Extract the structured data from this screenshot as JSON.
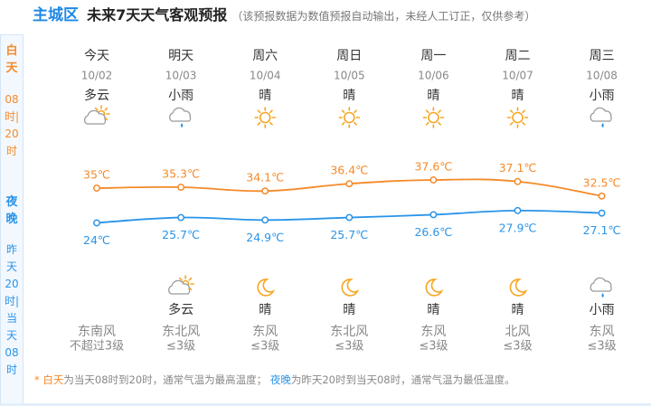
{
  "header": {
    "title": "主城区",
    "subtitle": "未来7天天气客观预报",
    "note": "（该预报数据为数值预报自动输出，未经人工订正，仅供参考）"
  },
  "sidebar": {
    "day_label": "白天",
    "day_hours": "08时|20时",
    "night_label": "夜晚",
    "night_hours": "昨天20时|当天08时"
  },
  "days": [
    {
      "weekday": "今天",
      "date": "10/02",
      "day_weather": "多云",
      "wind_dir": "东南风",
      "wind_level": "不超过3级"
    },
    {
      "weekday": "明天",
      "date": "10/03",
      "day_weather": "小雨",
      "night_weather": "多云",
      "wind_dir": "东北风",
      "wind_level": "≤3级"
    },
    {
      "weekday": "周六",
      "date": "10/04",
      "day_weather": "晴",
      "night_weather": "晴",
      "wind_dir": "东风",
      "wind_level": "≤3级"
    },
    {
      "weekday": "周日",
      "date": "10/05",
      "day_weather": "晴",
      "night_weather": "晴",
      "wind_dir": "东北风",
      "wind_level": "≤3级"
    },
    {
      "weekday": "周一",
      "date": "10/06",
      "day_weather": "晴",
      "night_weather": "晴",
      "wind_dir": "东风",
      "wind_level": "≤3级"
    },
    {
      "weekday": "周二",
      "date": "10/07",
      "day_weather": "晴",
      "night_weather": "晴",
      "wind_dir": "北风",
      "wind_level": "≤3级"
    },
    {
      "weekday": "周三",
      "date": "10/08",
      "day_weather": "小雨",
      "night_weather": "小雨",
      "wind_dir": "东风",
      "wind_level": "≤3级"
    }
  ],
  "chart_data": {
    "type": "line",
    "series": [
      {
        "color": "#f58a2a",
        "values": [
          35,
          35.3,
          34.1,
          36.4,
          37.6,
          37.1,
          32.5
        ],
        "value_labels": [
          "35℃",
          "35.3℃",
          "34.1℃",
          "36.4℃",
          "37.6℃",
          "37.1℃",
          "32.5℃"
        ]
      },
      {
        "color": "#2a94e8",
        "values": [
          24,
          25.7,
          24.9,
          25.7,
          26.6,
          27.9,
          27.1
        ],
        "value_labels": [
          "24℃",
          "25.7℃",
          "24.9℃",
          "25.7℃",
          "26.6℃",
          "27.9℃",
          "27.1℃"
        ]
      }
    ]
  },
  "footer": {
    "mark": "*",
    "day_term": "白天",
    "day_text": "为当天08时到20时，通常气温为最高温度；",
    "night_term": "夜晚",
    "night_text": "为昨天20时到当天08时，通常气温为最低温度。"
  }
}
